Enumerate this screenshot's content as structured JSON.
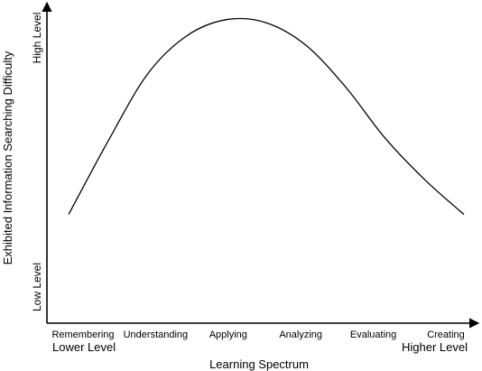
{
  "chart_data": {
    "type": "line",
    "title": "",
    "xlabel": "Learning Spectrum",
    "ylabel": "Exhibited Information Searching Difficulty",
    "categories": [
      "Remembering",
      "Understanding",
      "Applying",
      "Analyzing",
      "Evaluating",
      "Creating"
    ],
    "x_end_labels": {
      "low": "Lower Level",
      "high": "Higher Level"
    },
    "y_end_labels": {
      "low": "Low Level",
      "high": "High Level"
    },
    "ylim": [
      0,
      1
    ],
    "grid": false,
    "legend": "none",
    "series": [
      {
        "x": [
          0.0,
          0.5,
          1.0,
          1.5,
          2.0,
          2.5,
          3.0,
          3.5,
          4.0,
          4.5,
          5.0
        ],
        "values": [
          0.34,
          0.57,
          0.78,
          0.9,
          0.95,
          0.94,
          0.87,
          0.74,
          0.58,
          0.45,
          0.34
        ]
      }
    ]
  }
}
